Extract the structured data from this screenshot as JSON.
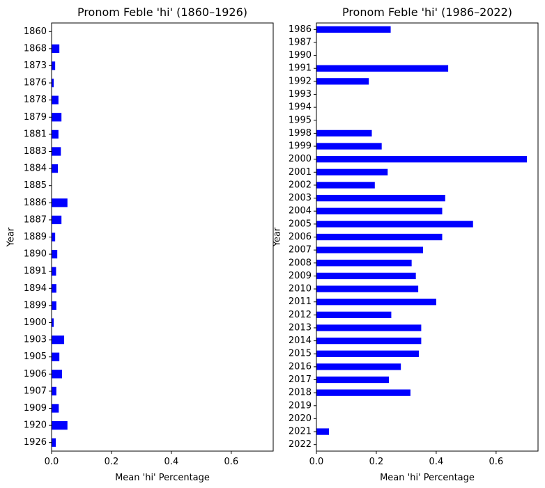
{
  "chart_data": [
    {
      "type": "bar",
      "orientation": "horizontal",
      "title": "Pronom Feble 'hi' (1860–1926)",
      "xlabel": "Mean 'hi' Percentage",
      "ylabel": "Year",
      "xlim": [
        0,
        0.74
      ],
      "xticks": [
        "0.0",
        "0.2",
        "0.4",
        "0.6"
      ],
      "xtick_values": [
        0,
        0.2,
        0.4,
        0.6
      ],
      "color": "#0000ff",
      "categories": [
        "1860",
        "1868",
        "1873",
        "1876",
        "1878",
        "1879",
        "1881",
        "1883",
        "1884",
        "1885",
        "1886",
        "1887",
        "1889",
        "1890",
        "1891",
        "1894",
        "1899",
        "1900",
        "1903",
        "1905",
        "1906",
        "1907",
        "1909",
        "1920",
        "1926"
      ],
      "values": [
        0.0,
        0.026,
        0.012,
        0.007,
        0.023,
        0.033,
        0.023,
        0.031,
        0.021,
        0.0,
        0.053,
        0.033,
        0.012,
        0.019,
        0.015,
        0.016,
        0.016,
        0.007,
        0.042,
        0.026,
        0.035,
        0.016,
        0.024,
        0.053,
        0.014
      ]
    },
    {
      "type": "bar",
      "orientation": "horizontal",
      "title": "Pronom Feble 'hi' (1986–2022)",
      "xlabel": "Mean 'hi' Percentage",
      "ylabel": "Year",
      "xlim": [
        0,
        0.74
      ],
      "xticks": [
        "0.0",
        "0.2",
        "0.4",
        "0.6"
      ],
      "xtick_values": [
        0,
        0.2,
        0.4,
        0.6
      ],
      "color": "#0000ff",
      "categories": [
        "1986",
        "1987",
        "1990",
        "1991",
        "1992",
        "1993",
        "1994",
        "1995",
        "1998",
        "1999",
        "2000",
        "2001",
        "2002",
        "2003",
        "2004",
        "2005",
        "2006",
        "2007",
        "2008",
        "2009",
        "2010",
        "2011",
        "2012",
        "2013",
        "2014",
        "2015",
        "2016",
        "2017",
        "2018",
        "2019",
        "2020",
        "2021",
        "2022"
      ],
      "values": [
        0.248,
        0.0,
        0.0,
        0.44,
        0.175,
        0.0,
        0.0,
        0.0,
        0.185,
        0.218,
        0.703,
        0.238,
        0.195,
        0.43,
        0.42,
        0.523,
        0.42,
        0.356,
        0.318,
        0.332,
        0.34,
        0.4,
        0.25,
        0.35,
        0.35,
        0.342,
        0.282,
        0.242,
        0.314,
        0.0,
        0.0,
        0.042,
        0.0
      ]
    }
  ]
}
